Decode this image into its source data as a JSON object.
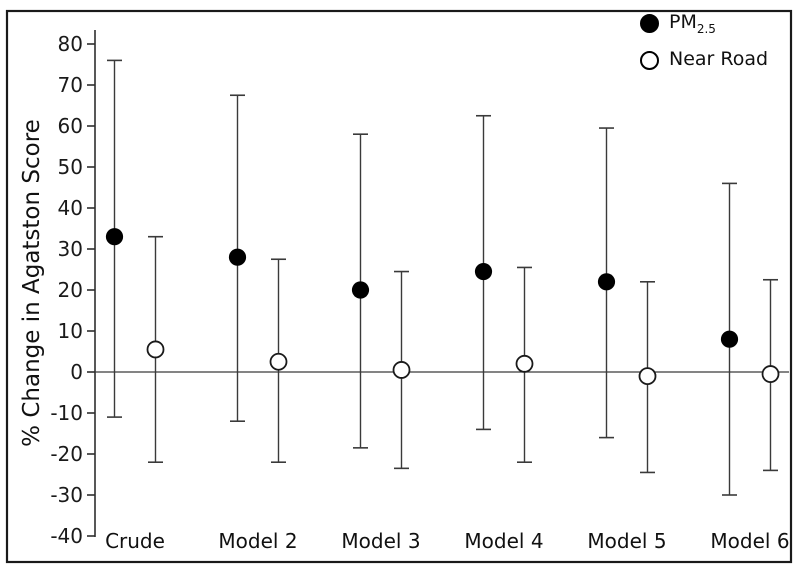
{
  "figure": {
    "y_axis_label": "% Change in Agatston Score",
    "background_color": "#ffffff",
    "frame_color": "#1a1a1a",
    "axis_color": "#2e2e2e",
    "marker_fill_color": "#000000",
    "legend": {
      "items": [
        {
          "name": "PM2.5",
          "label": "PM",
          "sub": "2.5",
          "marker": "filled-circle"
        },
        {
          "name": "Near Road",
          "label": "Near Road",
          "sub": "",
          "marker": "open-circle"
        }
      ]
    }
  },
  "chart_data": {
    "type": "scatter",
    "subtype": "point-estimate-with-error-bars",
    "title": "",
    "xlabel": "",
    "ylabel": "% Change in Agatston Score",
    "categories": [
      "Crude",
      "Model 2",
      "Model 3",
      "Model 4",
      "Model 5",
      "Model 6"
    ],
    "ylim": [
      -40,
      80
    ],
    "yticks": [
      80,
      70,
      60,
      50,
      40,
      30,
      20,
      10,
      0,
      -10,
      -20,
      -30,
      -40
    ],
    "zero_line": true,
    "grid": false,
    "legend_position": "top-right",
    "series": [
      {
        "name": "PM2.5",
        "marker": "filled-circle",
        "values": [
          33,
          28,
          20,
          24.5,
          22,
          8
        ],
        "ci_low": [
          -11,
          -12,
          -18.5,
          -14,
          -16,
          -30
        ],
        "ci_high": [
          76,
          67.5,
          58,
          62.5,
          59.5,
          46
        ]
      },
      {
        "name": "Near Road",
        "marker": "open-circle",
        "values": [
          5.5,
          2.5,
          0.5,
          2,
          -1,
          -0.5
        ],
        "ci_low": [
          -22,
          -22,
          -23.5,
          -22,
          -24.5,
          -24
        ],
        "ci_high": [
          33,
          27.5,
          24.5,
          25.5,
          22,
          22.5
        ]
      }
    ]
  }
}
